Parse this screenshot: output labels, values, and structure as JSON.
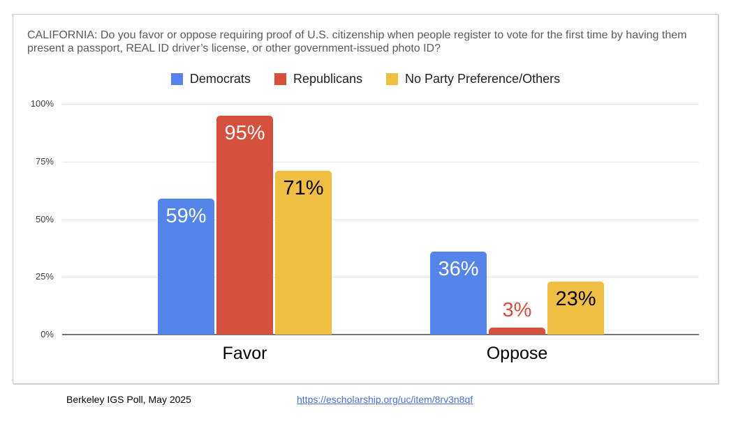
{
  "chart_data": {
    "type": "bar",
    "title": "CALIFORNIA: Do you favor or oppose requiring proof of U.S. citizenship when people register to vote for the first time by having them present a passport, REAL ID driver’s license, or other government-issued photo ID?",
    "categories": [
      "Favor",
      "Oppose"
    ],
    "series": [
      {
        "name": "Democrats",
        "color": "#5484EA",
        "label_color": "#ffffff",
        "values": [
          59,
          36
        ]
      },
      {
        "name": "Republicans",
        "color": "#D5503D",
        "label_color": "#ffffff",
        "values": [
          95,
          3
        ]
      },
      {
        "name": "No Party Preference/Others",
        "color": "#EFBE42",
        "label_color": "#000000",
        "values": [
          71,
          23
        ]
      }
    ],
    "value_suffix": "%",
    "ylim": [
      0,
      100
    ],
    "yticks": [
      0,
      25,
      50,
      75,
      100
    ],
    "ytick_suffix": "%",
    "grid": true,
    "legend_position": "top",
    "colors": {
      "grid": "#e6e6e6",
      "baseline": "#757575",
      "title_text": "#5a5a5a",
      "tick_text": "#3f3f3f"
    }
  },
  "footer": {
    "source": "Berkeley IGS Poll, May 2025",
    "link_text": "https://escholarship.org/uc/item/8rv3n8qf"
  }
}
